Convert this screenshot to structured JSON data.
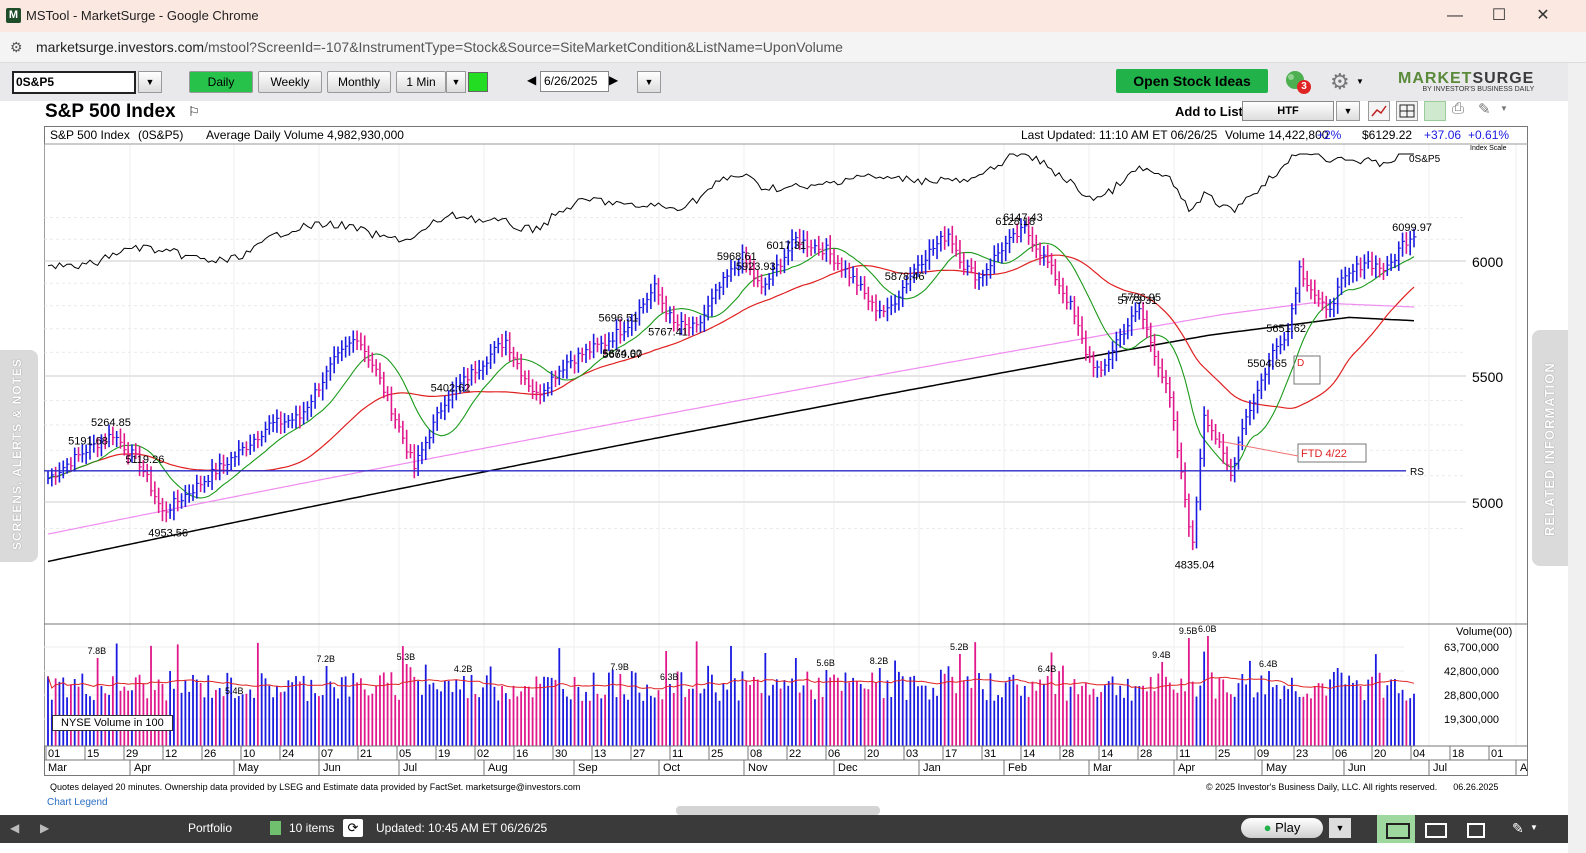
{
  "window": {
    "title": "MSTool - MarketSurge - Google Chrome",
    "app_icon": "M"
  },
  "browser": {
    "url_host": "marketsurge.investors.com",
    "url_path": "/mstool?ScreenId=-107&InstrumentType=Stock&Source=SiteMarketCondition&ListName=UponVolume"
  },
  "toolbar": {
    "symbol": "0S&P5",
    "periods": [
      "Daily",
      "Weekly",
      "Monthly",
      "1 Min"
    ],
    "active_period": "Daily",
    "date": "6/26/2025",
    "open_ideas": "Open Stock Ideas",
    "notification_count": "3",
    "brand_name_a": "MARKET",
    "brand_name_b": "SURGE",
    "brand_tagline": "BY INVESTOR'S BUSINESS DAILY"
  },
  "header": {
    "title": "S&P 500 Index",
    "add_to_list_label": "Add to List:",
    "list_value": "HTF"
  },
  "info": {
    "name": "S&P 500 Index",
    "symbol": "(0S&P5)",
    "avg_volume": "Average Daily Volume 4,982,930,000",
    "last_updated": "Last Updated: 11:10 AM ET 06/26/25",
    "volume": "Volume 14,422,800",
    "vol_pct": "+2%",
    "price": "$6129.22",
    "change": "+37.06",
    "change_pct": "+0.61%",
    "index_scale": "Index Scale"
  },
  "side_tabs": {
    "left": "SCREENS, ALERTS & NOTES",
    "right": "RELATED INFORMATION"
  },
  "chart_data": {
    "type": "line",
    "title": "S&P 500 Index",
    "price_axis_ticks": [
      6000,
      5500,
      5000
    ],
    "volume_axis_ticks": [
      "63,700,000",
      "42,800,000",
      "28,800,000",
      "19,300,000"
    ],
    "volume_axis_title": "Volume(00)",
    "volume_note": "NYSE Volume in 100",
    "rs_line_label": "0S&P5",
    "rs_label": "RS",
    "x_tick_days": [
      "01",
      "15",
      "29",
      "12",
      "26",
      "10",
      "24",
      "07",
      "21",
      "05",
      "19",
      "02",
      "16",
      "30",
      "13",
      "27",
      "11",
      "25",
      "08",
      "22",
      "06",
      "20",
      "03",
      "17",
      "31",
      "14",
      "28",
      "14",
      "28",
      "11",
      "25",
      "09",
      "23",
      "06",
      "20",
      "04",
      "18",
      "01"
    ],
    "x_months": [
      "Mar",
      "Apr",
      "May",
      "Jun",
      "Jul",
      "Aug",
      "Sep",
      "Oct",
      "Nov",
      "Dec",
      "Jan",
      "Feb",
      "Mar",
      "Apr",
      "May",
      "Jun",
      "Jul",
      "Au"
    ],
    "annotations": [
      {
        "label": "5264.85",
        "value": 5264.85
      },
      {
        "label": "4953.56",
        "value": 4953.56
      },
      {
        "label": "5191.68",
        "value": 5191.68
      },
      {
        "label": "5669.67",
        "value": 5669.67
      },
      {
        "label": "5119.26",
        "value": 5119.26
      },
      {
        "label": "5651.62",
        "value": 5651.62
      },
      {
        "label": "5402.62",
        "value": 5402.62
      },
      {
        "label": "5674.00",
        "value": 5674.0
      },
      {
        "label": "5878.46",
        "value": 5878.46
      },
      {
        "label": "5696.51",
        "value": 5696.51
      },
      {
        "label": "6017.31",
        "value": 6017.31
      },
      {
        "label": "6099.97",
        "value": 6099.97
      },
      {
        "label": "5773.31",
        "value": 5773.31
      },
      {
        "label": "6128.18",
        "value": 6128.18
      },
      {
        "label": "5923.93",
        "value": 5923.93
      },
      {
        "label": "6147.43",
        "value": 6147.43
      },
      {
        "label": "5786.95",
        "value": 5786.95
      },
      {
        "label": "5504.65",
        "value": 5504.65
      },
      {
        "label": "4835.04",
        "value": 4835.04
      },
      {
        "label": "5968.61",
        "value": 5968.61
      },
      {
        "label": "5767.41",
        "value": 5767.41
      }
    ],
    "volume_annotations": [
      "7.8B",
      "5.4B",
      "7.2B",
      "5.3B",
      "4.2B",
      "7.9B",
      "6.3B",
      "5.6B",
      "8.2B",
      "5.2B",
      "6.4B",
      "9.4B",
      "9.5B",
      "6.0B",
      "6.4B"
    ],
    "ftd_label": "FTD 4/22",
    "box_label": "D",
    "reference_line": 5119.26,
    "colors": {
      "up_bar": "#1a1ae0",
      "down_bar": "#e0188c",
      "ma_short": "#1a9a1a",
      "ma_mid": "#e02020",
      "ma_long": "#000000",
      "ma_pink": "#f08cf0"
    }
  },
  "footer": {
    "notes": "Quotes delayed 20 minutes. Ownership data provided by LSEG and Estimate data provided by FactSet. marketsurge@investors.com",
    "copyright": "© 2025 Investor's Business Daily, LLC. All rights reserved.",
    "date": "06.26.2025",
    "chart_legend": "Chart Legend"
  },
  "bottombar": {
    "portfolio": "Portfolio",
    "items": "10 items",
    "updated": "Updated: 10:45 AM ET 06/26/25",
    "play": "Play"
  }
}
